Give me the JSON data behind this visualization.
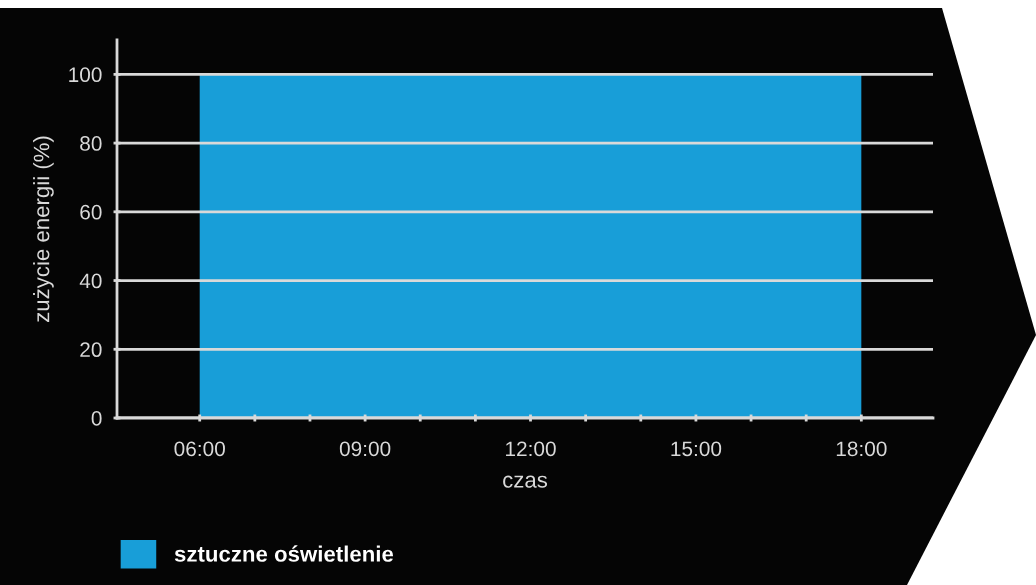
{
  "chart_data": {
    "type": "area",
    "xlabel": "czas",
    "ylabel": "zużycie energii (%)",
    "x": [
      6,
      18
    ],
    "series": [
      {
        "name": "sztuczne oświetlenie",
        "color": "#189ed8",
        "values": [
          100,
          100
        ]
      }
    ],
    "xlim": [
      4.5,
      19.3
    ],
    "xticks": [
      {
        "value": 6,
        "label": "06:00"
      },
      {
        "value": 7,
        "label": null
      },
      {
        "value": 8,
        "label": null
      },
      {
        "value": 9,
        "label": "09:00"
      },
      {
        "value": 10,
        "label": null
      },
      {
        "value": 11,
        "label": null
      },
      {
        "value": 12,
        "label": "12:00"
      },
      {
        "value": 13,
        "label": null
      },
      {
        "value": 14,
        "label": null
      },
      {
        "value": 15,
        "label": "15:00"
      },
      {
        "value": 16,
        "label": null
      },
      {
        "value": 17,
        "label": null
      },
      {
        "value": 18,
        "label": "18:00"
      }
    ],
    "ylim": [
      0,
      110
    ],
    "yticks": [
      0,
      20,
      40,
      60,
      80,
      100
    ],
    "grid": "y",
    "legend": "bottom left"
  }
}
